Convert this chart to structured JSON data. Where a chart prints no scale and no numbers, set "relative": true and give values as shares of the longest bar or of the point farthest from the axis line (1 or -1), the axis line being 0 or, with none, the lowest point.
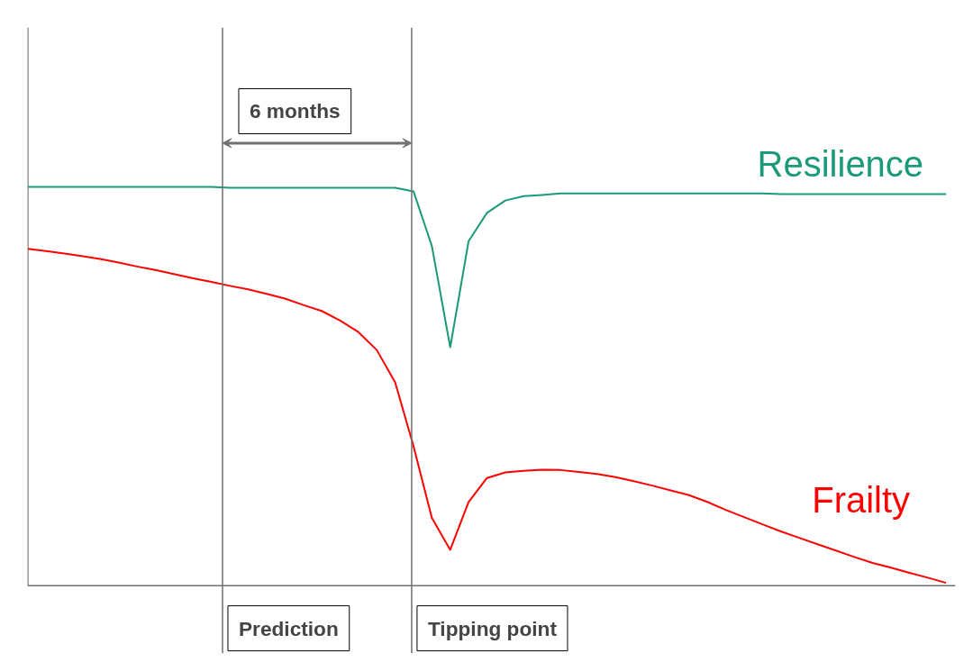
{
  "chart_data": {
    "type": "line",
    "relative": true,
    "marker": "none",
    "line_style": "solid",
    "categories": [
      null,
      null,
      null,
      null,
      null,
      null,
      null,
      null,
      null,
      null,
      null,
      null,
      null,
      null,
      null,
      null,
      null,
      null,
      null,
      null,
      null,
      null,
      null,
      null,
      null,
      null,
      null,
      null,
      null,
      null,
      null,
      null,
      null,
      null,
      null,
      null,
      null,
      null,
      null,
      null,
      null,
      null,
      null,
      null,
      null,
      null,
      null,
      null,
      null,
      null,
      null
    ],
    "annotations": [
      "6 months",
      "Prediction",
      "Tipping point"
    ],
    "series": [
      {
        "name": "Resilience",
        "color": "#1a9a78",
        "values": [
          1.0,
          1.0,
          1.0,
          1.0,
          1.0,
          1.0,
          1.0,
          1.0,
          1.0,
          1.0,
          1.0,
          0.998,
          0.998,
          0.998,
          0.998,
          0.998,
          0.998,
          0.998,
          0.998,
          0.998,
          0.998,
          0.989,
          0.852,
          0.598,
          0.864,
          0.935,
          0.966,
          0.977,
          0.98,
          0.984,
          0.984,
          0.984,
          0.984,
          0.984,
          0.984,
          0.984,
          0.984,
          0.984,
          0.984,
          0.984,
          0.984,
          0.982,
          0.982,
          0.982,
          0.982,
          0.982,
          0.982,
          0.982,
          0.982,
          0.982,
          0.982
        ]
      },
      {
        "name": "Frailty",
        "color": "#ff0000",
        "values": [
          0.845,
          0.839,
          0.833,
          0.826,
          0.819,
          0.81,
          0.8,
          0.791,
          0.781,
          0.771,
          0.762,
          0.752,
          0.743,
          0.732,
          0.72,
          0.704,
          0.689,
          0.665,
          0.636,
          0.591,
          0.51,
          0.35,
          0.17,
          0.09,
          0.21,
          0.27,
          0.284,
          0.288,
          0.291,
          0.29,
          0.285,
          0.28,
          0.272,
          0.262,
          0.251,
          0.239,
          0.227,
          0.21,
          0.19,
          0.172,
          0.154,
          0.136,
          0.12,
          0.104,
          0.088,
          0.072,
          0.057,
          0.045,
          0.032,
          0.02,
          0.007
        ]
      }
    ]
  }
}
